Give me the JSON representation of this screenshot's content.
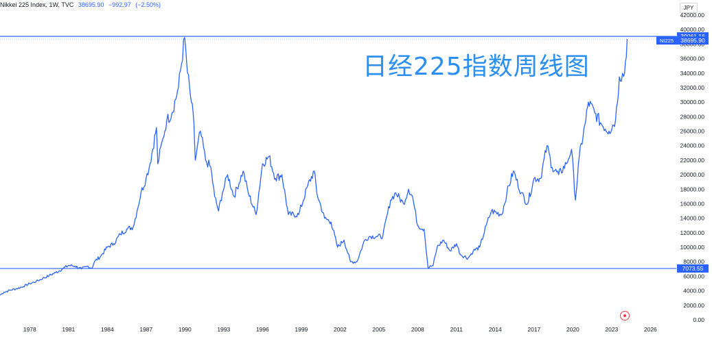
{
  "legend": {
    "symbol": "Nikkei 225 Index, 1W, TVC",
    "last": "38695.90",
    "change": "−992.97",
    "change_pct": "(−2.50%)"
  },
  "currency": "JPY",
  "overlay_title": "日经225指数周线图",
  "chart_data": {
    "type": "line",
    "title": "",
    "xlabel": "",
    "ylabel": "",
    "ylim": [
      0,
      42000
    ],
    "xlim": [
      1975.7,
      2028.0
    ],
    "y_ticks": [
      "0.00",
      "2000.00",
      "4000.00",
      "6000.00",
      "8000.00",
      "10000.00",
      "12000.00",
      "14000.00",
      "16000.00",
      "18000.00",
      "20000.00",
      "22000.00",
      "24000.00",
      "26000.00",
      "28000.00",
      "30000.00",
      "32000.00",
      "34000.00",
      "36000.00",
      "38000.00",
      "40000.00",
      "42000.00"
    ],
    "x_ticks": [
      "1978",
      "1981",
      "1984",
      "1987",
      "1990",
      "1993",
      "1996",
      "1999",
      "2002",
      "2005",
      "2008",
      "2011",
      "2014",
      "2017",
      "2020",
      "2023",
      "2026"
    ],
    "series": [
      {
        "color": "#2962ff",
        "x": [
          1975.7,
          1976.0,
          1976.5,
          1977.0,
          1977.5,
          1978.0,
          1978.5,
          1979.0,
          1979.5,
          1980.0,
          1980.5,
          1981.0,
          1981.5,
          1982.0,
          1982.5,
          1982.8,
          1983.0,
          1983.5,
          1984.0,
          1984.5,
          1985.0,
          1985.5,
          1986.0,
          1986.3,
          1986.6,
          1987.0,
          1987.3,
          1987.8,
          1987.9,
          1988.3,
          1988.6,
          1989.0,
          1989.5,
          1989.98,
          1990.2,
          1990.5,
          1990.7,
          1990.8,
          1991.2,
          1991.6,
          1992.0,
          1992.3,
          1992.6,
          1992.9,
          1993.3,
          1993.8,
          1994.5,
          1994.9,
          1995.5,
          1996.0,
          1996.5,
          1997.0,
          1997.5,
          1998.0,
          1998.8,
          1999.5,
          2000.0,
          2000.2,
          2000.8,
          2001.3,
          2001.8,
          2002.3,
          2002.8,
          2003.3,
          2003.9,
          2004.3,
          2004.8,
          2005.3,
          2005.9,
          2006.3,
          2006.9,
          2007.3,
          2007.6,
          2008.0,
          2008.5,
          2008.8,
          2009.2,
          2009.5,
          2010.0,
          2010.5,
          2011.0,
          2011.3,
          2011.9,
          2012.3,
          2012.8,
          2013.3,
          2013.7,
          2014.5,
          2014.9,
          2015.4,
          2016.0,
          2016.5,
          2017.0,
          2017.5,
          2018.0,
          2018.4,
          2018.9,
          2019.5,
          2019.9,
          2020.2,
          2020.5,
          2021.0,
          2021.2,
          2021.7,
          2022.2,
          2022.8,
          2023.3,
          2023.6,
          2024.0,
          2024.2
        ],
        "y": [
          3400,
          3800,
          4100,
          4300,
          4600,
          5000,
          5300,
          5700,
          6100,
          6500,
          7000,
          7500,
          7400,
          7000,
          7400,
          7100,
          8000,
          8800,
          10000,
          10500,
          11800,
          12500,
          12800,
          15000,
          17500,
          19500,
          21500,
          26500,
          21500,
          25000,
          27500,
          28500,
          32000,
          38900,
          34000,
          30000,
          27000,
          22000,
          26000,
          22000,
          21000,
          17000,
          15000,
          17500,
          20000,
          17000,
          20500,
          17500,
          14500,
          21500,
          22500,
          19500,
          20000,
          14500,
          14500,
          18500,
          20500,
          17500,
          14000,
          13500,
          10000,
          11000,
          8000,
          8000,
          11000,
          11500,
          11500,
          11500,
          16500,
          17500,
          16000,
          18000,
          17000,
          13000,
          12500,
          7200,
          7500,
          10000,
          11000,
          9500,
          10500,
          9000,
          8500,
          9500,
          10000,
          13000,
          15000,
          14500,
          17500,
          20500,
          17500,
          16000,
          19500,
          19500,
          24000,
          21000,
          20000,
          21500,
          23500,
          16500,
          22500,
          27500,
          30000,
          28500,
          27000,
          26000,
          27500,
          33500,
          34000,
          38695.9
        ]
      }
    ],
    "hlines": [
      {
        "value": 39061.16,
        "label": "39061.16"
      },
      {
        "value": 7073.55,
        "label": "7073.55"
      }
    ],
    "last_value": {
      "label": "NI225",
      "value": "38695.90"
    },
    "grid": false,
    "legend_position": "top-left"
  }
}
